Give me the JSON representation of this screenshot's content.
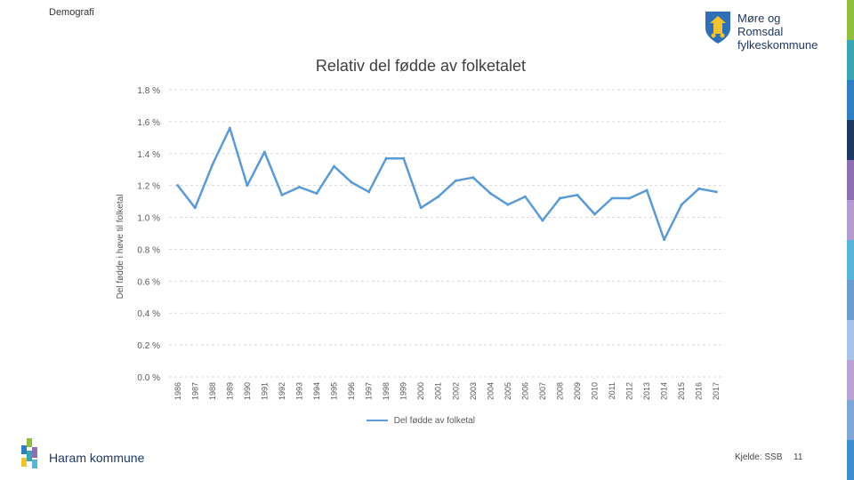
{
  "header": {
    "section": "Demografi",
    "logo_line1": "Møre og Romsdal",
    "logo_line2": "fylkeskommune"
  },
  "footer": {
    "municipality": "Haram kommune",
    "source": "Kjelde: SSB",
    "page": "11"
  },
  "colors": {
    "series": "#5b9bd5",
    "grid": "#d9d9d9",
    "stripes": [
      "#8fbf3f",
      "#3aa6b4",
      "#2f7fc1",
      "#1f3864",
      "#8e6fb4",
      "#b59cd0",
      "#5ab3d8",
      "#6c9bd1",
      "#a7c4e8",
      "#b8a3d4",
      "#7fa8d8",
      "#3b8fcf"
    ]
  },
  "chart_data": {
    "type": "line",
    "title": "Relativ del fødde av folketalet",
    "xlabel": "",
    "ylabel": "Del fødde i høve til folketal",
    "ylim": [
      0,
      1.8
    ],
    "ytick_labels": [
      "0.0 %",
      "0.2 %",
      "0.4 %",
      "0.6 %",
      "0.8 %",
      "1.0 %",
      "1.2 %",
      "1.4 %",
      "1.6 %",
      "1.8 %"
    ],
    "categories": [
      "1986",
      "1987",
      "1988",
      "1989",
      "1990",
      "1991",
      "1992",
      "1993",
      "1994",
      "1995",
      "1996",
      "1997",
      "1998",
      "1999",
      "2000",
      "2001",
      "2002",
      "2003",
      "2004",
      "2005",
      "2006",
      "2007",
      "2008",
      "2009",
      "2010",
      "2011",
      "2012",
      "2013",
      "2014",
      "2015",
      "2016",
      "2017"
    ],
    "series": [
      {
        "name": "Del fødde av folketal",
        "values": [
          1.2,
          1.06,
          1.33,
          1.56,
          1.2,
          1.41,
          1.14,
          1.19,
          1.15,
          1.32,
          1.22,
          1.16,
          1.37,
          1.37,
          1.06,
          1.13,
          1.23,
          1.25,
          1.15,
          1.08,
          1.13,
          0.98,
          1.12,
          1.14,
          1.02,
          1.12,
          1.12,
          1.17,
          0.86,
          1.08,
          1.18,
          1.16
        ]
      }
    ],
    "legend_position": "bottom",
    "grid": true
  }
}
